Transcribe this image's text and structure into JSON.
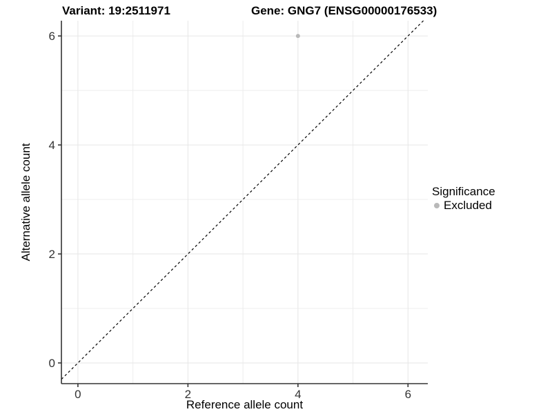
{
  "chart_data": {
    "type": "scatter",
    "title_parts": {
      "variant": "Variant: 19:2511971",
      "gene": "Gene: GNG7 (ENSG00000176533)"
    },
    "xlabel": "Reference allele count",
    "ylabel": "Alternative allele count",
    "xlim": [
      -0.3,
      6.36
    ],
    "ylim": [
      -0.38,
      6.28
    ],
    "x_ticks": [
      0,
      2,
      4,
      6
    ],
    "y_ticks": [
      0,
      2,
      4,
      6
    ],
    "minor_grid_x": [
      1,
      3,
      5
    ],
    "minor_grid_y": [
      1,
      3,
      5
    ],
    "grid": true,
    "series": [
      {
        "name": "Excluded",
        "color": "#b9b9b9",
        "points": [
          {
            "x": 4,
            "y": 6
          }
        ]
      }
    ],
    "reference_line": {
      "type": "identity",
      "slope": 1,
      "intercept": 0,
      "style": "dashed",
      "color": "#000000"
    },
    "legend": {
      "title": "Significance",
      "position": "right",
      "entries": [
        {
          "label": "Excluded",
          "color": "#b9b9b9"
        }
      ]
    },
    "colors": {
      "background": "#ffffff",
      "grid_major": "#e6e6e6",
      "grid_minor": "#ededed",
      "axis_line": "#333333",
      "tick_label": "#333333"
    }
  }
}
